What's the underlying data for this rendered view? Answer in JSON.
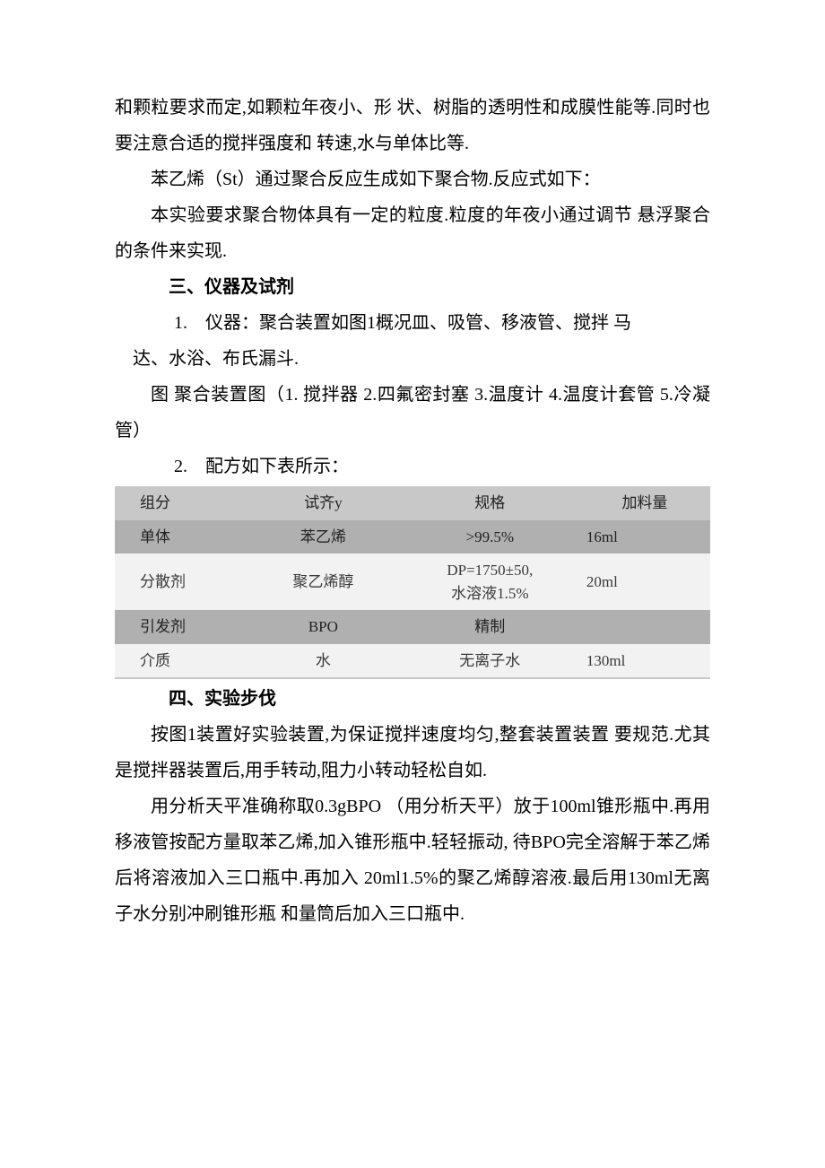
{
  "para1": "和颗粒要求而定,如颗粒年夜小、形 状、树脂的透明性和成膜性能等.同时也要注意合适的搅拌强度和 转速,水与单体比等.",
  "para2": "苯乙烯（St）通过聚合反应生成如下聚合物.反应式如下：",
  "para3": "本实验要求聚合物体具有一定的粒度.粒度的年夜小通过调节 悬浮聚合的条件来实现.",
  "section3_title": "三、仪器及试剂",
  "item1_lead": "1.　仪器：聚合装置如图1概况皿、吸管、移液管、搅拌 马",
  "item1_cont": "达、水浴、布氏漏斗.",
  "fig_caption": "图 聚合装置图（1. 搅拌器 2.四氟密封塞 3.温度计 4.温度计套管 5.冷凝管）",
  "item2_lead": "2.　配方如下表所示：",
  "table": {
    "columns": [
      "组分",
      "试齐y",
      "规格",
      "加料量"
    ],
    "rows": [
      {
        "style": "grey",
        "cells": [
          "单体",
          "苯乙烯",
          ">99.5%",
          "16ml"
        ]
      },
      {
        "style": "light",
        "cells": [
          "分散剂",
          "聚乙烯醇",
          "DP=1750±50,\n水溶液1.5%",
          "20ml"
        ]
      },
      {
        "style": "grey",
        "cells": [
          "引发剂",
          "BPO",
          "精制",
          ""
        ]
      },
      {
        "style": "light",
        "cells": [
          "介质",
          "水",
          "无离子水",
          "130ml"
        ]
      }
    ],
    "header_bg": "#c8c8c8",
    "grey_bg": "#b0b0b0",
    "light_bg": "#f2f2f2"
  },
  "section4_title": "四、实验步伐",
  "para4": "按图1装置好实验装置,为保证搅拌速度均匀,整套装置装置 要规范.尤其是搅拌器装置后,用手转动,阻力小转动轻松自如.",
  "para5": "用分析天平准确称取0.3gBPO （用分析天平）放于100ml锥形瓶中.再用移液管按配方量取苯乙烯,加入锥形瓶中.轻轻振动, 待BPO完全溶解于苯乙烯后将溶液加入三口瓶中.再加入 20ml1.5%的聚乙烯醇溶液.最后用130ml无离子水分别冲刷锥形瓶 和量筒后加入三口瓶中."
}
